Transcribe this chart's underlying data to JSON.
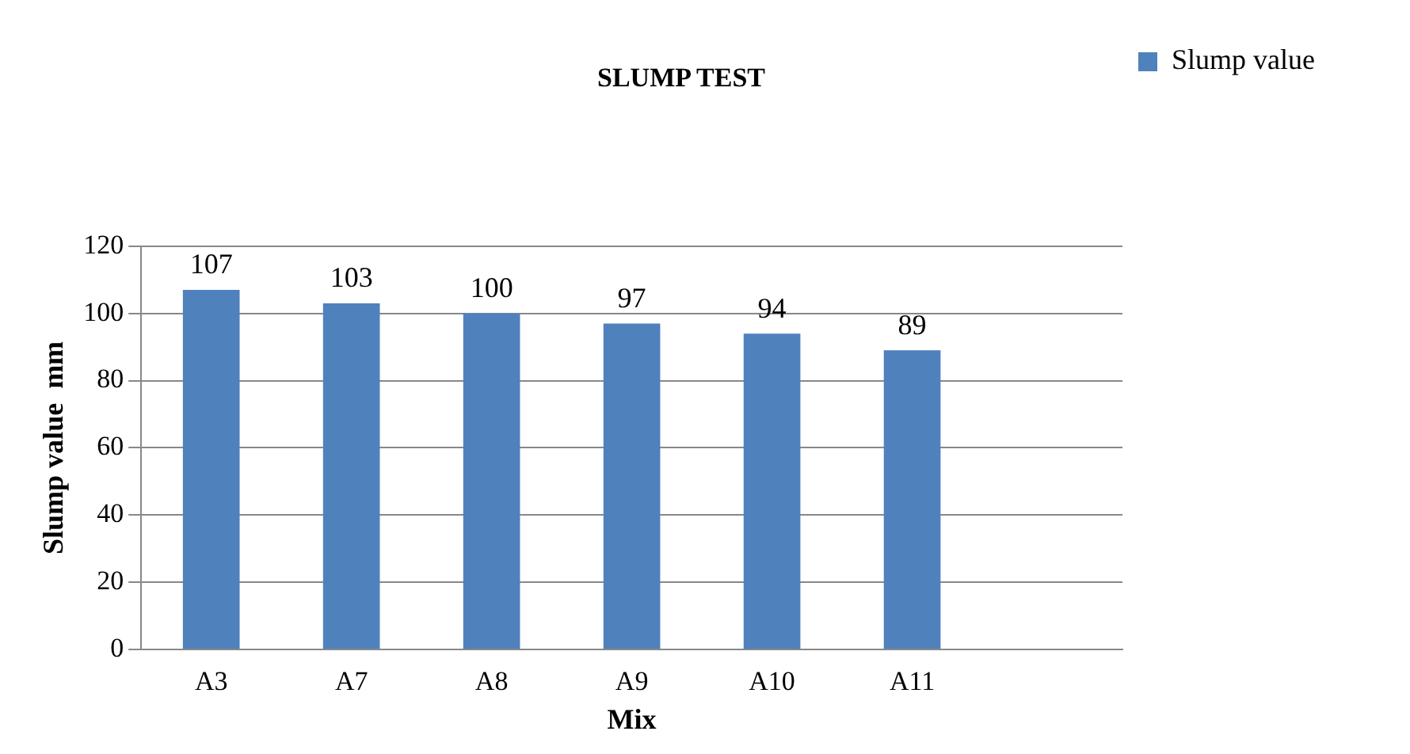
{
  "chart_data": {
    "type": "bar",
    "title": "SLUMP TEST",
    "xlabel": "Mix",
    "ylabel": "Slump value  mm",
    "categories": [
      "A3",
      "A7",
      "A8",
      "A9",
      "A10",
      "A11",
      null
    ],
    "series": [
      {
        "name": "Slump value",
        "color": "#4f81bd",
        "values": [
          107,
          103,
          100,
          97,
          94,
          89,
          null
        ]
      }
    ],
    "ylim": [
      0,
      120
    ],
    "yticks": [
      0,
      20,
      40,
      60,
      80,
      100,
      120
    ],
    "grid": "y",
    "legend": "right",
    "data_labels": true
  }
}
